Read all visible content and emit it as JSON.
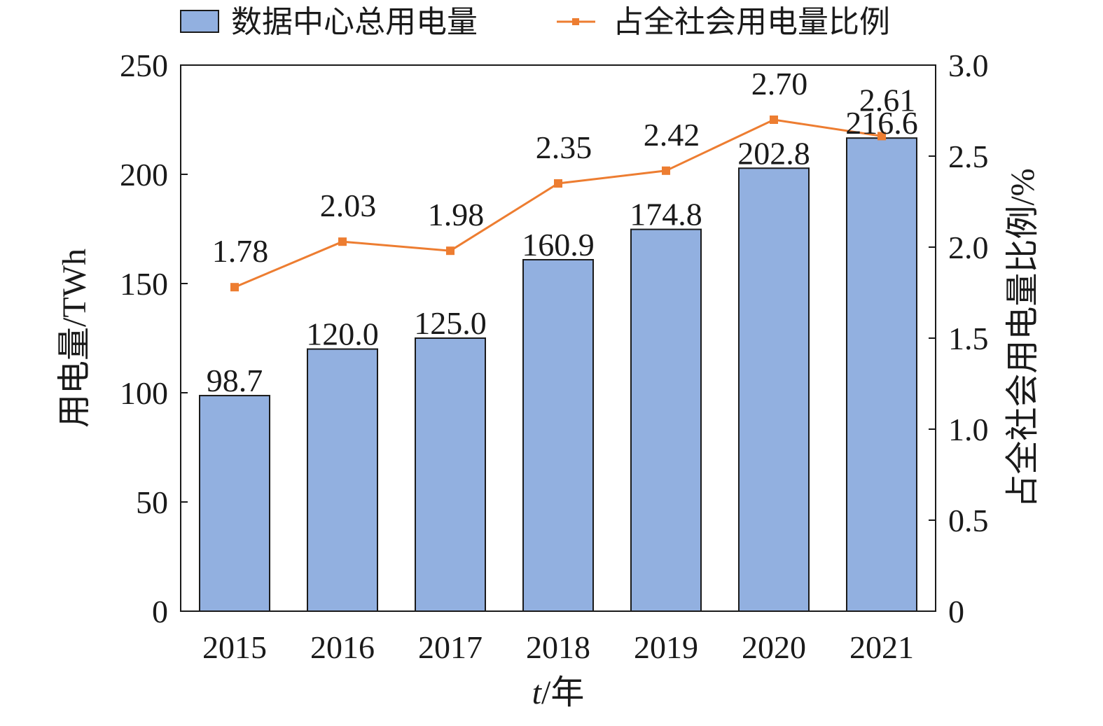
{
  "chart_data": {
    "type": "bar",
    "categories": [
      "2015",
      "2016",
      "2017",
      "2018",
      "2019",
      "2020",
      "2021"
    ],
    "series": [
      {
        "name": "数据中心总用电量",
        "type": "bar",
        "axis": "left",
        "values": [
          98.7,
          120.0,
          125.0,
          160.9,
          174.8,
          202.8,
          216.6
        ],
        "labels": [
          "98.7",
          "120.0",
          "125.0",
          "160.9",
          "174.8",
          "202.8",
          "216.6"
        ],
        "color": "#92b0e0"
      },
      {
        "name": "占全社会用电量比例",
        "type": "line",
        "axis": "right",
        "values": [
          1.78,
          2.03,
          1.98,
          2.35,
          2.42,
          2.7,
          2.61
        ],
        "labels": [
          "1.78",
          "2.03",
          "1.98",
          "2.35",
          "2.42",
          "2.70",
          "2.61"
        ],
        "color": "#ed7d31"
      }
    ],
    "xlabel_italic": "t",
    "xlabel_rest": "/年",
    "ylabel": "用电量/TWh",
    "y2label": "占全社会用电量比例/%",
    "ylim": [
      0,
      250
    ],
    "y2lim": [
      0,
      3.0
    ],
    "yticks": [
      "0",
      "50",
      "100",
      "150",
      "200",
      "250"
    ],
    "y2ticks": [
      "0",
      "0.5",
      "1.0",
      "1.5",
      "2.0",
      "2.5",
      "3.0"
    ],
    "grid": false,
    "legend_position": "top"
  }
}
